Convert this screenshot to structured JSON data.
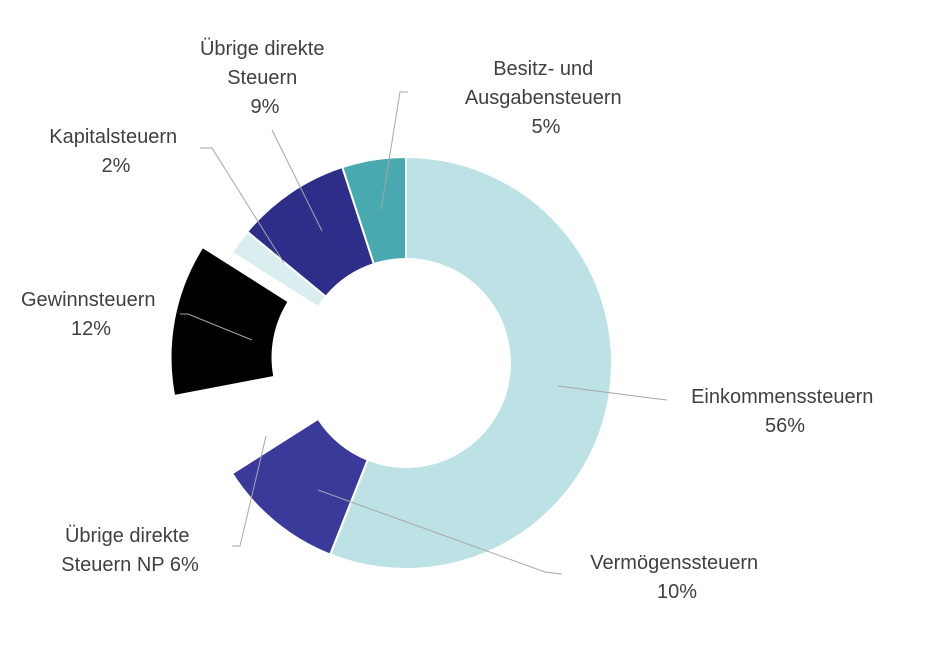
{
  "chart_data": {
    "type": "pie",
    "donut": true,
    "title": "",
    "legend": "none",
    "slices": [
      {
        "name": "Einkommenssteuern",
        "value": 56,
        "label": "56%",
        "color": "#bce2e6",
        "exploded": false
      },
      {
        "name": "Vermögenssteuern",
        "value": 10,
        "label": "10%",
        "color": "#3b3a9b",
        "exploded": false
      },
      {
        "name": "Übrige direkte Steuern NP",
        "value": 6,
        "label": "6%",
        "color": "#ffffff",
        "exploded": false
      },
      {
        "name": "Gewinnsteuern",
        "value": 12,
        "label": "12%",
        "color": "#000000",
        "exploded": true
      },
      {
        "name": "Kapitalsteuern",
        "value": 2,
        "label": "2%",
        "color": "#daeef0",
        "exploded": false
      },
      {
        "name": "Übrige direkte Steuern",
        "value": 9,
        "label": "9%",
        "color": "#2e2d8a",
        "exploded": false
      },
      {
        "name": "Besitz- und Ausgabensteuern",
        "value": 5,
        "label": "5%",
        "color": "#49a9b1",
        "exploded": false
      }
    ],
    "labels": {
      "einkommen": {
        "line1": "Einkommenssteuern",
        "line2": "56%"
      },
      "vermoegen": {
        "line1": "Vermögenssteuern",
        "line2": "10%"
      },
      "uebrige_np": {
        "line1": "Übrige direkte",
        "line2": "Steuern NP 6%"
      },
      "gewinn": {
        "line1": "Gewinnsteuern",
        "line2": "12%"
      },
      "kapital": {
        "line1": "Kapitalsteuern",
        "line2": "2%"
      },
      "uebrige": {
        "line1": "Übrige direkte",
        "line2": "Steuern",
        "line3": "9%"
      },
      "besitz": {
        "line1": "Besitz- und",
        "line2": "Ausgabensteuern",
        "line3": "5%"
      }
    }
  }
}
